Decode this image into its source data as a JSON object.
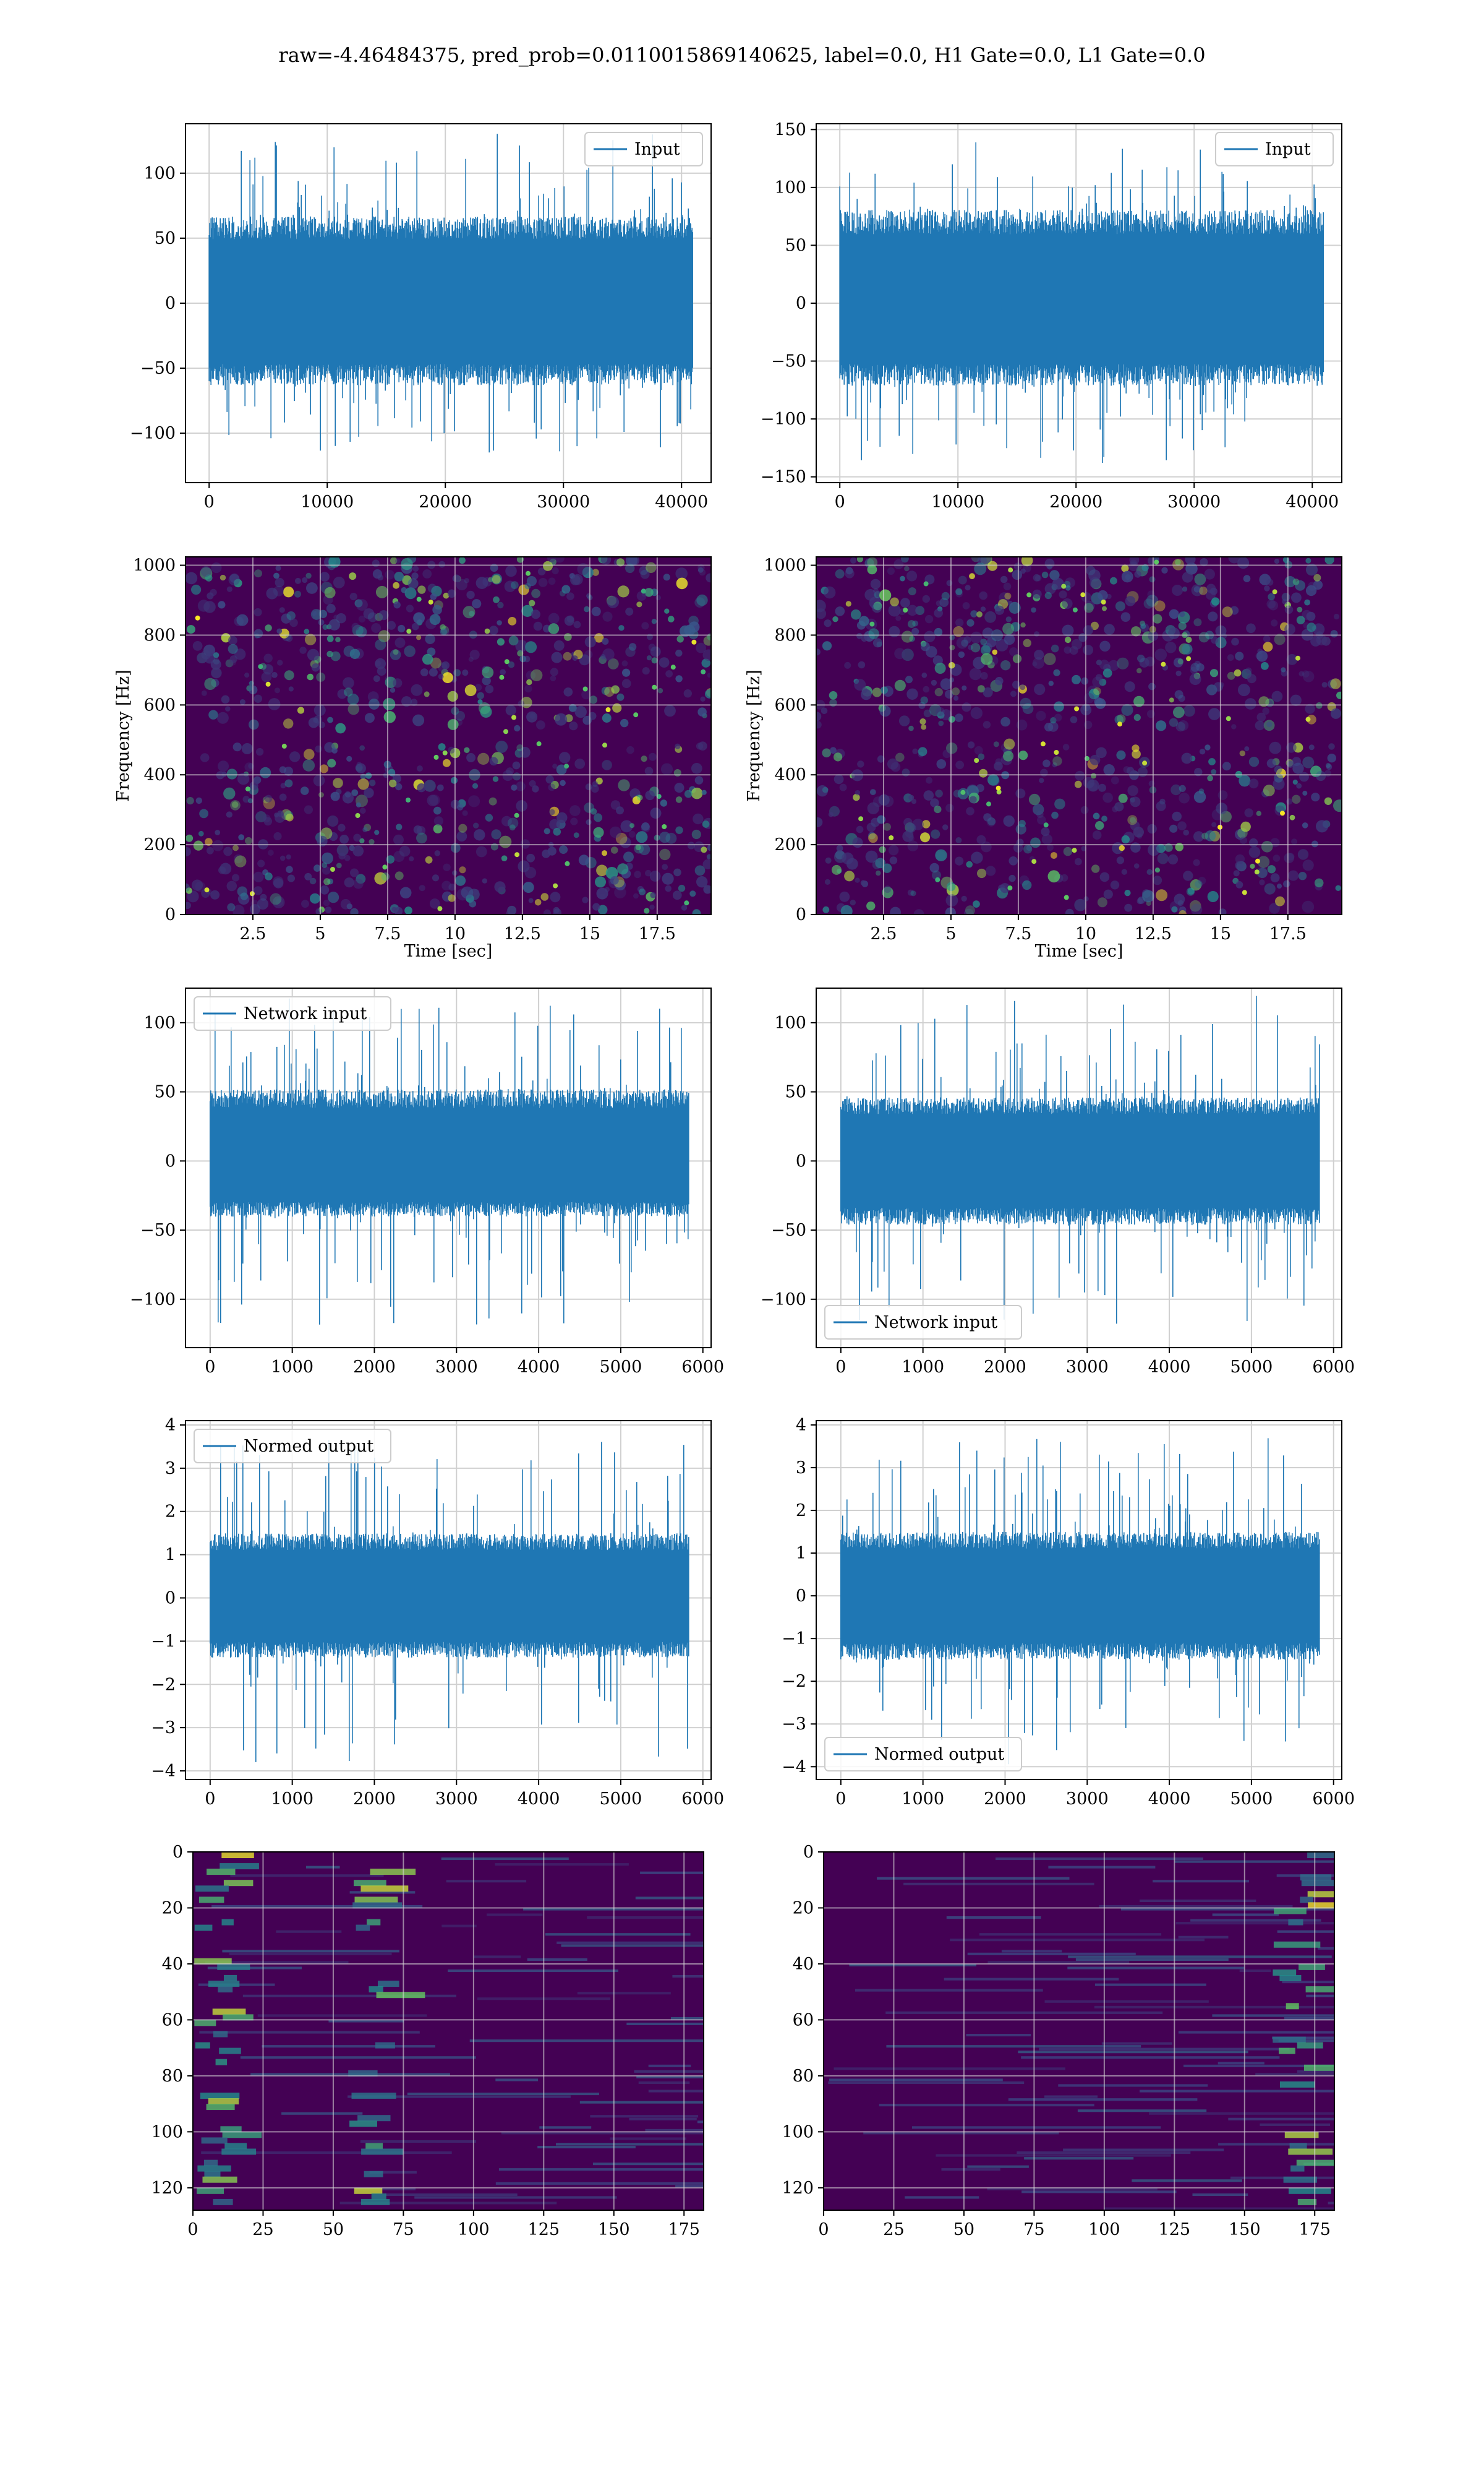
{
  "figure": {
    "title": "raw=-4.46484375, pred_prob=0.0110015869140625, label=0.0, H1 Gate=0.0, L1 Gate=0.0"
  },
  "colors": {
    "line": "#1f77b4",
    "grid": "#d0d0d0",
    "viridis_low": "#440154",
    "viridis_high": "#fde725"
  },
  "chart_data": [
    {
      "id": "row1-left",
      "type": "line",
      "xlim": [
        -2000,
        42500
      ],
      "ylim": [
        -138,
        138
      ],
      "xticks": [
        0,
        10000,
        20000,
        30000,
        40000
      ],
      "yticks": [
        -100,
        -50,
        0,
        50,
        100
      ],
      "legend": "Input",
      "legend_position": "upper right",
      "grid": true,
      "signal": {
        "x_start": 0,
        "x_end": 40960,
        "band": [
          -55,
          58
        ],
        "peak": [
          -115,
          132
        ]
      }
    },
    {
      "id": "row1-right",
      "type": "line",
      "xlim": [
        -2000,
        42500
      ],
      "ylim": [
        -155,
        155
      ],
      "xticks": [
        0,
        10000,
        20000,
        30000,
        40000
      ],
      "yticks": [
        -150,
        -100,
        -50,
        0,
        50,
        100,
        150
      ],
      "legend": "Input",
      "legend_position": "upper right",
      "grid": true,
      "signal": {
        "x_start": 0,
        "x_end": 40960,
        "band": [
          -62,
          70
        ],
        "peak": [
          -143,
          140
        ]
      }
    },
    {
      "id": "row2-left",
      "type": "heatmap",
      "xlim": [
        0,
        19.5
      ],
      "ylim": [
        0,
        1024
      ],
      "xticks": [
        2.5,
        5.0,
        7.5,
        10.0,
        12.5,
        15.0,
        17.5
      ],
      "yticks": [
        0,
        200,
        400,
        600,
        800,
        1000
      ],
      "xlabel": "Time [sec]",
      "ylabel": "Frequency [Hz]",
      "grid": true,
      "dark_band": 510
    },
    {
      "id": "row2-right",
      "type": "heatmap",
      "xlim": [
        0,
        19.5
      ],
      "ylim": [
        0,
        1024
      ],
      "xticks": [
        2.5,
        5.0,
        7.5,
        10.0,
        12.5,
        15.0,
        17.5
      ],
      "yticks": [
        0,
        200,
        400,
        600,
        800,
        1000
      ],
      "xlabel": "Time [sec]",
      "ylabel": "Frequency [Hz]",
      "grid": true,
      "dark_band": 510
    },
    {
      "id": "row3-left",
      "type": "line",
      "xlim": [
        -300,
        6100
      ],
      "ylim": [
        -135,
        125
      ],
      "xticks": [
        0,
        1000,
        2000,
        3000,
        4000,
        5000,
        6000
      ],
      "yticks": [
        -100,
        -50,
        0,
        50,
        100
      ],
      "legend": "Network input",
      "legend_position": "upper left",
      "grid": true,
      "signal": {
        "x_start": 0,
        "x_end": 5830,
        "band": [
          -35,
          45
        ],
        "peak": [
          -120,
          120
        ]
      }
    },
    {
      "id": "row3-right",
      "type": "line",
      "xlim": [
        -300,
        6100
      ],
      "ylim": [
        -135,
        125
      ],
      "xticks": [
        0,
        1000,
        2000,
        3000,
        4000,
        5000,
        6000
      ],
      "yticks": [
        -100,
        -50,
        0,
        50,
        100
      ],
      "legend": "Network input",
      "legend_position": "lower left",
      "grid": true,
      "signal": {
        "x_start": 0,
        "x_end": 5830,
        "band": [
          -40,
          40
        ],
        "peak": [
          -125,
          120
        ]
      }
    },
    {
      "id": "row4-left",
      "type": "line",
      "xlim": [
        -300,
        6100
      ],
      "ylim": [
        -4.2,
        4.1
      ],
      "xticks": [
        0,
        1000,
        2000,
        3000,
        4000,
        5000,
        6000
      ],
      "yticks": [
        -4,
        -3,
        -2,
        -1,
        0,
        1,
        2,
        3,
        4
      ],
      "legend": "Normed output",
      "legend_position": "upper left",
      "grid": true,
      "signal": {
        "x_start": 0,
        "x_end": 5830,
        "band": [
          -1.2,
          1.3
        ],
        "peak": [
          -3.8,
          3.8
        ]
      }
    },
    {
      "id": "row4-right",
      "type": "line",
      "xlim": [
        -300,
        6100
      ],
      "ylim": [
        -4.3,
        4.1
      ],
      "xticks": [
        0,
        1000,
        2000,
        3000,
        4000,
        5000,
        6000
      ],
      "yticks": [
        -4,
        -3,
        -2,
        -1,
        0,
        1,
        2,
        3,
        4
      ],
      "legend": "Normed output",
      "legend_position": "lower left",
      "grid": true,
      "signal": {
        "x_start": 0,
        "x_end": 5830,
        "band": [
          -1.3,
          1.3
        ],
        "peak": [
          -4.0,
          3.8
        ]
      }
    },
    {
      "id": "row5-left",
      "type": "heatmap",
      "xlim": [
        0,
        182
      ],
      "ylim": [
        0,
        128
      ],
      "y_inverted": true,
      "xticks": [
        0,
        25,
        50,
        75,
        100,
        125,
        150,
        175
      ],
      "yticks": [
        0,
        20,
        40,
        60,
        80,
        100,
        120
      ],
      "grid": true,
      "bright_columns": [
        [
          55,
          78
        ],
        [
          0,
          20
        ]
      ]
    },
    {
      "id": "row5-right",
      "type": "heatmap",
      "xlim": [
        0,
        182
      ],
      "ylim": [
        0,
        128
      ],
      "y_inverted": true,
      "xticks": [
        0,
        25,
        50,
        75,
        100,
        125,
        150,
        175
      ],
      "yticks": [
        0,
        20,
        40,
        60,
        80,
        100,
        120
      ],
      "grid": true,
      "bright_columns": [
        [
          160,
          182
        ]
      ]
    }
  ]
}
